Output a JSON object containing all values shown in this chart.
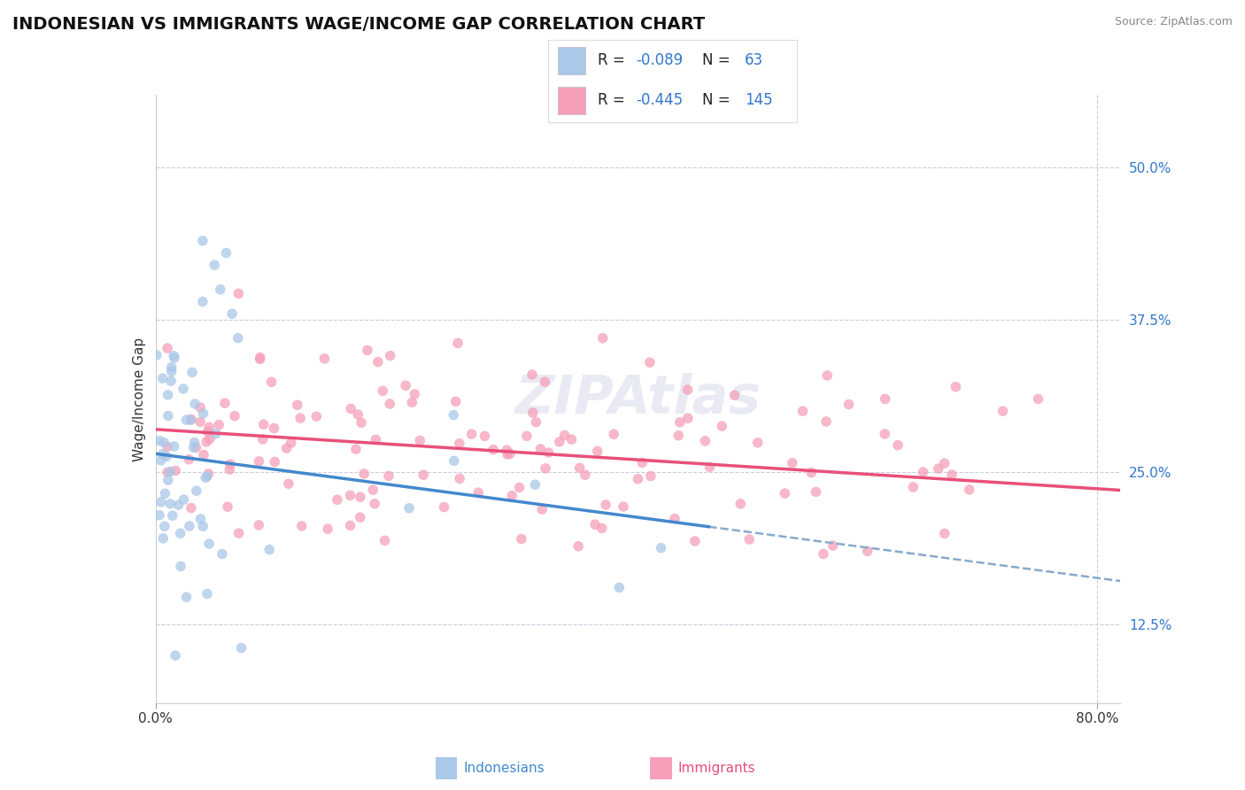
{
  "title": "INDONESIAN VS IMMIGRANTS WAGE/INCOME GAP CORRELATION CHART",
  "source": "Source: ZipAtlas.com",
  "ylabel": "Wage/Income Gap",
  "yticks": [
    0.125,
    0.25,
    0.375,
    0.5
  ],
  "ytick_labels": [
    "12.5%",
    "25.0%",
    "37.5%",
    "50.0%"
  ],
  "xlim": [
    0.0,
    0.82
  ],
  "ylim": [
    0.06,
    0.56
  ],
  "indonesian_color": "#aac8e8",
  "immigrant_color": "#f5a0b8",
  "indonesian_line_color": "#4488cc",
  "immigrant_line_color": "#e8507a",
  "dashed_line_color": "#88aacc",
  "R1": "-0.089",
  "N1": "63",
  "R2": "-0.445",
  "N2": "145",
  "title_fontsize": 14,
  "axis_label_fontsize": 11,
  "tick_fontsize": 11,
  "background_color": "#ffffff",
  "grid_color": "#ccccdd",
  "watermark": "ZIPAtlas",
  "value_color": "#3377cc",
  "label_color": "#222222"
}
